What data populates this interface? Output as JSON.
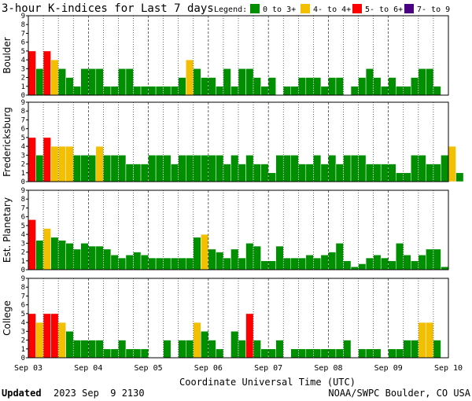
{
  "chart_data": {
    "type": "bar",
    "title": "3-hour K-indices for Last 7 days",
    "legend": {
      "label": "Legend:",
      "placement": "top-right",
      "items": [
        {
          "label": "0 to 3+",
          "color": "#008f00"
        },
        {
          "label": "4- to 4+",
          "color": "#f2c000"
        },
        {
          "label": "5- to 6+",
          "color": "#ff0000"
        },
        {
          "label": "7- to 9",
          "color": "#4b0082"
        }
      ]
    },
    "xlabel": "Coordinate Universal Time (UTC)",
    "x_ticks": [
      "Sep 03",
      "Sep 04",
      "Sep 05",
      "Sep 06",
      "Sep 07",
      "Sep 08",
      "Sep 09",
      "Sep 10"
    ],
    "ylim": [
      0,
      9
    ],
    "y_ticks": [
      "0",
      "1",
      "2",
      "3",
      "4",
      "5",
      "6",
      "7",
      "8",
      "9"
    ],
    "grid": "dotted vertical at 6-hour intervals, dashed at day boundaries",
    "panels": [
      {
        "name": "Boulder",
        "values": [
          5,
          3,
          5,
          4,
          3,
          2,
          1,
          3,
          3,
          3,
          1,
          1,
          3,
          3,
          1,
          1,
          1,
          1,
          1,
          1,
          2,
          4,
          3,
          2,
          2,
          1,
          3,
          1,
          3,
          3,
          2,
          1,
          2,
          0,
          1,
          1,
          2,
          2,
          2,
          1,
          2,
          2,
          0,
          1,
          2,
          3,
          2,
          1,
          2,
          1,
          1,
          2,
          3,
          3,
          1,
          0
        ]
      },
      {
        "name": "Fredericksburg",
        "values": [
          5,
          3,
          5,
          4,
          4,
          4,
          3,
          3,
          3,
          4,
          3,
          3,
          3,
          2,
          2,
          2,
          3,
          3,
          3,
          2,
          3,
          3,
          3,
          3,
          3,
          3,
          2,
          3,
          2,
          3,
          2,
          2,
          1,
          3,
          3,
          3,
          2,
          2,
          3,
          2,
          3,
          2,
          3,
          3,
          3,
          2,
          2,
          2,
          2,
          1,
          1,
          3,
          3,
          2,
          2,
          3,
          4,
          1,
          0
        ]
      },
      {
        "name": "Est. Planetary",
        "values": [
          5.67,
          3.33,
          4.67,
          3.67,
          3.33,
          3,
          2.33,
          3,
          2.67,
          2.67,
          2.33,
          1.67,
          1.33,
          1.67,
          2,
          1.67,
          1.33,
          1.33,
          1.33,
          1.33,
          1.33,
          1.33,
          3.67,
          4,
          2.33,
          2,
          1.33,
          2.33,
          1.33,
          3,
          2.67,
          1,
          1,
          2.67,
          1.33,
          1.33,
          1.33,
          1.67,
          1.33,
          1.67,
          2,
          3,
          1,
          0.33,
          0.67,
          1.33,
          1.67,
          1.33,
          1,
          3,
          1.67,
          1,
          1.67,
          2.33,
          2.33,
          0.33,
          0
        ]
      },
      {
        "name": "College",
        "values": [
          5,
          4,
          5,
          5,
          4,
          3,
          2,
          2,
          2,
          2,
          1,
          1,
          2,
          1,
          1,
          1,
          0,
          0,
          2,
          0,
          2,
          2,
          4,
          3,
          2,
          1,
          0,
          3,
          2,
          5,
          2,
          1,
          1,
          2,
          0,
          1,
          1,
          1,
          1,
          1,
          1,
          1,
          2,
          0,
          1,
          1,
          1,
          0,
          1,
          1,
          2,
          2,
          4,
          4,
          2,
          0,
          0
        ]
      }
    ]
  },
  "footer": {
    "updated_label": "Updated",
    "updated_value": "2023 Sep  9 2130",
    "credit": "NOAA/SWPC Boulder, CO USA"
  }
}
